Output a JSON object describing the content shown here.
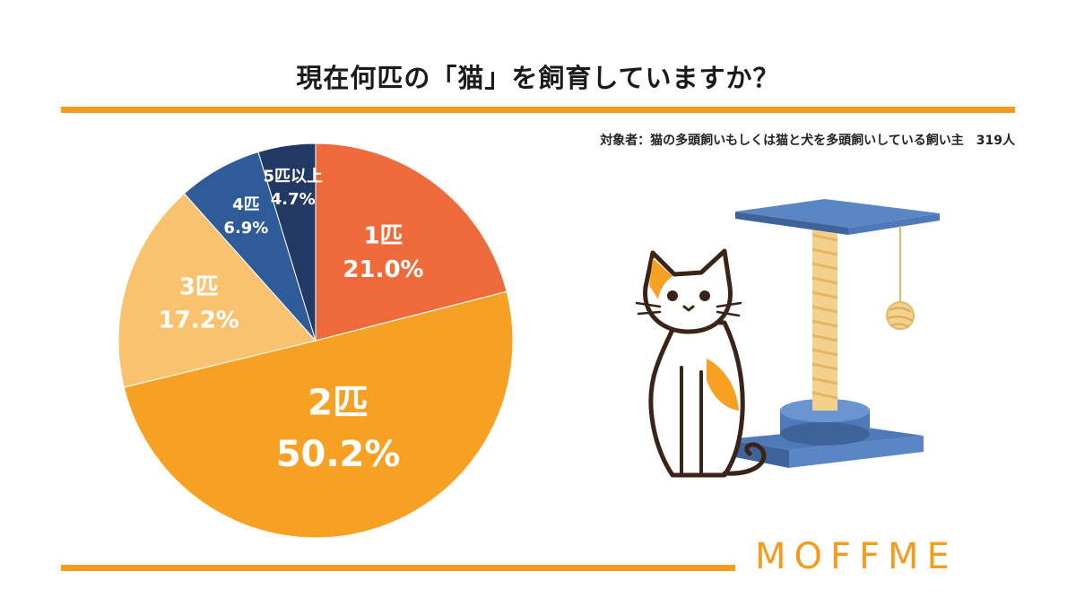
{
  "title": "現在何匹の「猫」を飼育していますか？",
  "subtitle": "対象者：猫の多頭飼いもしくは猫と犬を多頭飼いしている飼い主　319人",
  "brand": "MOFFME",
  "colors": {
    "accent": "#f39c1f",
    "slice_1": "#ee6a3a",
    "slice_2": "#f6a024",
    "slice_3": "#f9c26e",
    "slice_4": "#2f5c98",
    "slice_5": "#223a63"
  },
  "chart_data": {
    "type": "pie",
    "title": "現在何匹の「猫」を飼育していますか？",
    "slices": [
      {
        "label": "1匹",
        "value": 21.0,
        "value_label": "21.0%"
      },
      {
        "label": "2匹",
        "value": 50.2,
        "value_label": "50.2%"
      },
      {
        "label": "3匹",
        "value": 17.2,
        "value_label": "17.2%"
      },
      {
        "label": "4匹",
        "value": 6.9,
        "value_label": "6.9%"
      },
      {
        "label": "5匹以上",
        "value": 4.7,
        "value_label": "4.7%"
      }
    ],
    "start": "12 o'clock",
    "direction": "clockwise"
  },
  "illustration": {
    "description_icons": [
      "cat-icon",
      "cat-tree-icon",
      "yarn-ball-icon"
    ]
  }
}
